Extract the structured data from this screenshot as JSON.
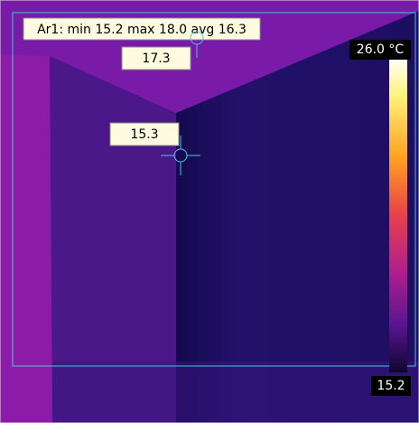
{
  "area": {
    "label": "Ar1: min 15.2 max 18.0 avg 16.3"
  },
  "spots": [
    {
      "label": "17.3"
    },
    {
      "label": "15.3"
    }
  ],
  "scale": {
    "max_label": "26.0 °C",
    "min_label": "15.2"
  }
}
